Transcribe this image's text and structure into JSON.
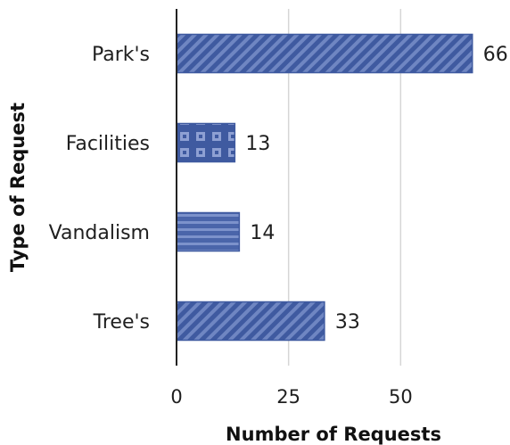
{
  "chart_data": {
    "type": "bar",
    "orientation": "horizontal",
    "categories": [
      "Park's",
      "Facilities",
      "Vandalism",
      "Tree's"
    ],
    "values": [
      66,
      13,
      14,
      33
    ],
    "bar_patterns": [
      "diagonal-stripes",
      "grid-squares",
      "horizontal-stripes",
      "diagonal-stripes"
    ],
    "bar_color": "#3f5aa0",
    "xlabel": "Number of Requests",
    "ylabel": "Type of Request",
    "xlim": [
      0,
      75
    ],
    "xticks": [
      0,
      25,
      50
    ],
    "xtick_labels": [
      "0",
      "25",
      "50"
    ],
    "grid": "vertical",
    "legend": "none",
    "data_labels": true
  }
}
